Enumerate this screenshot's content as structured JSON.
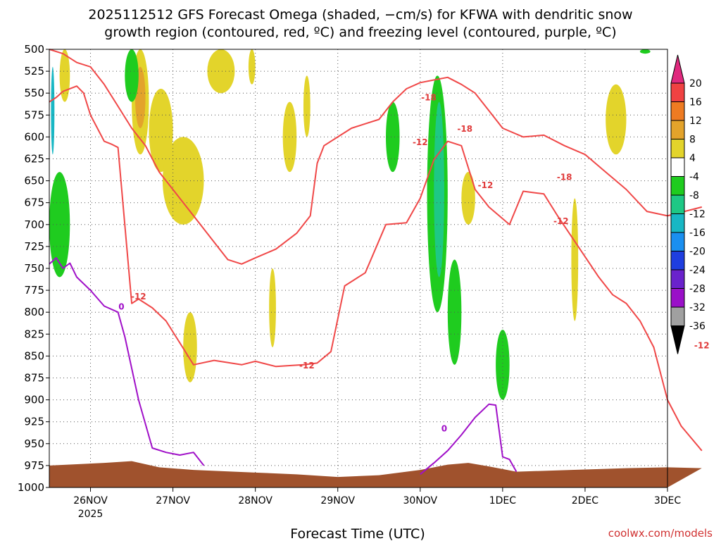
{
  "chart_data": {
    "type": "heatmap",
    "title_line1": "2025112512 GFS Forecast Omega (shaded, −cm/s) for KFWA with dendritic snow",
    "title_line2": "growth region (contoured, red, ºC) and freezing level (contoured, purple, ºC)",
    "xlabel": "Forecast Time (UTC)",
    "credit": "coolwx.com/models",
    "x_range_hours": [
      -12,
      168
    ],
    "x_ticks": [
      {
        "t": 0,
        "label": "26NOV",
        "sub": "2025"
      },
      {
        "t": 24,
        "label": "27NOV"
      },
      {
        "t": 48,
        "label": "28NOV"
      },
      {
        "t": 72,
        "label": "29NOV"
      },
      {
        "t": 96,
        "label": "30NOV"
      },
      {
        "t": 120,
        "label": "1DEC"
      },
      {
        "t": 144,
        "label": "2DEC"
      },
      {
        "t": 168,
        "label": "3DEC"
      }
    ],
    "y_range_hpa": [
      500,
      1000
    ],
    "y_ticks": [
      "500",
      "525",
      "550",
      "575",
      "600",
      "625",
      "650",
      "675",
      "700",
      "725",
      "750",
      "775",
      "800",
      "825",
      "850",
      "875",
      "900",
      "925",
      "950",
      "975",
      "1000"
    ],
    "colorbar": {
      "labels": [
        "20",
        "16",
        "12",
        "8",
        "4",
        "-4",
        "-8",
        "-12",
        "-16",
        "-20",
        "-24",
        "-28",
        "-32",
        "-36"
      ],
      "colors": [
        "#e0297e",
        "#f04242",
        "#ee7b22",
        "#e3a32b",
        "#e3d42b",
        "#ffffff",
        "#1fcc1f",
        "#1ec885",
        "#18b7c4",
        "#1a8ff0",
        "#1f3ee0",
        "#6a22cc",
        "#9a10c8",
        "#a0a0a0",
        "#000000"
      ]
    },
    "dgz_contour_labels": [
      {
        "t": 98.5,
        "p": 555,
        "label": "-18"
      },
      {
        "t": 96,
        "p": 606,
        "label": "-12"
      },
      {
        "t": 109,
        "p": 591,
        "label": "-18"
      },
      {
        "t": 138,
        "p": 646,
        "label": "-18"
      },
      {
        "t": 115,
        "p": 655,
        "label": "-12"
      },
      {
        "t": 14,
        "p": 782,
        "label": "-12"
      },
      {
        "t": 63,
        "p": 861,
        "label": "-12"
      },
      {
        "t": 137,
        "p": 696,
        "label": "-12"
      },
      {
        "t": 178,
        "p": 838,
        "label": "-12"
      }
    ],
    "freezing_contour_labels": [
      {
        "t": 9,
        "p": 794,
        "label": "0"
      },
      {
        "t": 103,
        "p": 933,
        "label": "0"
      }
    ],
    "series": [
      {
        "id": "dgz_warm",
        "color": "#f04848",
        "points": [
          [
            -12,
            560
          ],
          [
            -10,
            555
          ],
          [
            -8,
            548
          ],
          [
            -4,
            542
          ],
          [
            -2,
            550
          ],
          [
            0,
            575
          ],
          [
            2,
            590
          ],
          [
            4,
            605
          ],
          [
            6,
            608
          ],
          [
            8,
            612
          ],
          [
            12,
            790
          ],
          [
            14,
            785
          ],
          [
            18,
            795
          ],
          [
            22,
            810
          ],
          [
            26,
            835
          ],
          [
            30,
            860
          ],
          [
            36,
            855
          ],
          [
            44,
            860
          ],
          [
            48,
            856
          ],
          [
            54,
            862
          ],
          [
            62,
            860
          ],
          [
            66,
            858
          ],
          [
            70,
            845
          ],
          [
            74,
            770
          ],
          [
            80,
            755
          ],
          [
            86,
            700
          ],
          [
            92,
            698
          ],
          [
            96,
            670
          ],
          [
            100,
            626
          ],
          [
            104,
            605
          ],
          [
            108,
            610
          ],
          [
            112,
            660
          ],
          [
            116,
            680
          ],
          [
            122,
            700
          ],
          [
            126,
            662
          ],
          [
            132,
            665
          ],
          [
            136,
            690
          ],
          [
            142,
            725
          ],
          [
            148,
            760
          ],
          [
            152,
            780
          ],
          [
            156,
            790
          ],
          [
            160,
            810
          ],
          [
            164,
            840
          ],
          [
            168,
            900
          ],
          [
            172,
            930
          ],
          [
            178,
            958
          ]
        ]
      },
      {
        "id": "dgz_cold",
        "color": "#f04848",
        "points": [
          [
            -12,
            500
          ],
          [
            -8,
            505
          ],
          [
            -4,
            515
          ],
          [
            0,
            520
          ],
          [
            4,
            540
          ],
          [
            8,
            565
          ],
          [
            12,
            590
          ],
          [
            16,
            610
          ],
          [
            20,
            640
          ],
          [
            24,
            660
          ],
          [
            28,
            680
          ],
          [
            32,
            700
          ],
          [
            36,
            720
          ],
          [
            40,
            740
          ],
          [
            44,
            745
          ],
          [
            48,
            738
          ],
          [
            54,
            728
          ],
          [
            60,
            710
          ],
          [
            64,
            690
          ],
          [
            66,
            630
          ],
          [
            68,
            610
          ],
          [
            72,
            600
          ],
          [
            76,
            590
          ],
          [
            80,
            585
          ],
          [
            84,
            580
          ],
          [
            88,
            560
          ],
          [
            92,
            545
          ],
          [
            96,
            538
          ],
          [
            100,
            535
          ],
          [
            104,
            532
          ],
          [
            108,
            540
          ],
          [
            112,
            550
          ],
          [
            116,
            570
          ],
          [
            120,
            590
          ],
          [
            126,
            600
          ],
          [
            132,
            598
          ],
          [
            138,
            610
          ],
          [
            144,
            620
          ],
          [
            150,
            640
          ],
          [
            156,
            660
          ],
          [
            162,
            685
          ],
          [
            168,
            690
          ],
          [
            172,
            686
          ],
          [
            178,
            680
          ]
        ]
      },
      {
        "id": "freezing",
        "color": "#a010c8",
        "points": [
          [
            -12,
            745
          ],
          [
            -10,
            738
          ],
          [
            -8,
            750
          ],
          [
            -6,
            744
          ],
          [
            -4,
            760
          ],
          [
            0,
            775
          ],
          [
            4,
            793
          ],
          [
            8,
            800
          ],
          [
            10,
            828
          ],
          [
            14,
            900
          ],
          [
            18,
            955
          ],
          [
            22,
            960
          ],
          [
            26,
            963
          ],
          [
            30,
            960
          ],
          [
            33,
            975
          ]
        ]
      },
      {
        "id": "freezing2",
        "color": "#a010c8",
        "points": [
          [
            96,
            985
          ],
          [
            100,
            972
          ],
          [
            104,
            958
          ],
          [
            108,
            940
          ],
          [
            112,
            920
          ],
          [
            116,
            905
          ],
          [
            118,
            906
          ],
          [
            120,
            965
          ],
          [
            122,
            968
          ],
          [
            124,
            982
          ]
        ]
      }
    ],
    "omega_regions": [
      {
        "color": "#e3d42b",
        "t0": -9,
        "t1": -6,
        "p0": 500,
        "p1": 560
      },
      {
        "color": "#e3d42b",
        "t0": 12,
        "t1": 17,
        "p0": 500,
        "p1": 620
      },
      {
        "color": "#e3a32b",
        "t0": 13,
        "t1": 16,
        "p0": 520,
        "p1": 590
      },
      {
        "color": "#e3d42b",
        "t0": 17,
        "t1": 24,
        "p0": 545,
        "p1": 640
      },
      {
        "color": "#e3d42b",
        "t0": 21,
        "t1": 33,
        "p0": 600,
        "p1": 700
      },
      {
        "color": "#e3d42b",
        "t0": 27,
        "t1": 31,
        "p0": 800,
        "p1": 880
      },
      {
        "color": "#e3d42b",
        "t0": 34,
        "t1": 42,
        "p0": 500,
        "p1": 550
      },
      {
        "color": "#e3d42b",
        "t0": 46,
        "t1": 48,
        "p0": 500,
        "p1": 540
      },
      {
        "color": "#e3d42b",
        "t0": 52,
        "t1": 54,
        "p0": 750,
        "p1": 840
      },
      {
        "color": "#e3d42b",
        "t0": 56,
        "t1": 60,
        "p0": 560,
        "p1": 640
      },
      {
        "color": "#e3d42b",
        "t0": 62,
        "t1": 64,
        "p0": 530,
        "p1": 600
      },
      {
        "color": "#e3d42b",
        "t0": 108,
        "t1": 112,
        "p0": 640,
        "p1": 700
      },
      {
        "color": "#e3d42b",
        "t0": 140,
        "t1": 142,
        "p0": 670,
        "p1": 810
      },
      {
        "color": "#e3d42b",
        "t0": 150,
        "t1": 156,
        "p0": 540,
        "p1": 620
      },
      {
        "color": "#1fcc1f",
        "t0": -12,
        "t1": -6,
        "p0": 640,
        "p1": 760
      },
      {
        "color": "#1fcc1f",
        "t0": 10,
        "t1": 14,
        "p0": 500,
        "p1": 560
      },
      {
        "color": "#1fcc1f",
        "t0": 86,
        "t1": 90,
        "p0": 560,
        "p1": 640
      },
      {
        "color": "#1fcc1f",
        "t0": 98,
        "t1": 104,
        "p0": 530,
        "p1": 800
      },
      {
        "color": "#1ec885",
        "t0": 100,
        "t1": 103,
        "p0": 560,
        "p1": 760
      },
      {
        "color": "#1fcc1f",
        "t0": 104,
        "t1": 108,
        "p0": 740,
        "p1": 860
      },
      {
        "color": "#1fcc1f",
        "t0": 118,
        "t1": 122,
        "p0": 820,
        "p1": 900
      },
      {
        "color": "#18b7c4",
        "t0": -11.5,
        "t1": -10.5,
        "p0": 520,
        "p1": 620
      },
      {
        "color": "#1fcc1f",
        "t0": 160,
        "t1": 163,
        "p0": 500,
        "p1": 505
      }
    ],
    "terrain_color": "#a0522d"
  }
}
